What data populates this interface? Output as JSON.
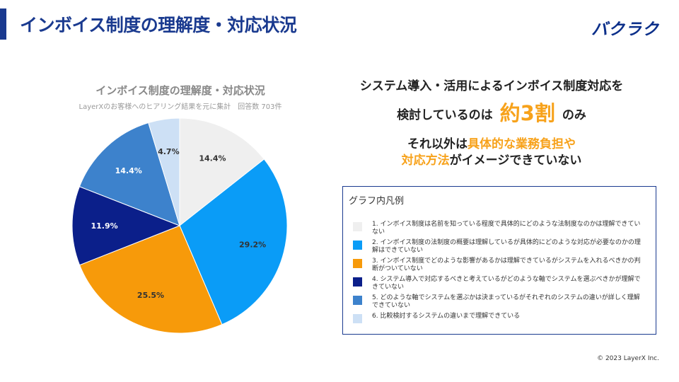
{
  "slide": {
    "title": "インボイス制度の理解度・対応状況",
    "logo": "バクラク",
    "copyright": "© 2023 LayerX Inc."
  },
  "headline": {
    "line1": "システム導入・活用によるインボイス制度対応を",
    "line2_before": "検討しているのは",
    "line2_emphasis": "約3割",
    "line2_after": "のみ",
    "line3_highlight": "具体的な業務負担や",
    "line3_prefix": "それ以外は",
    "line4_highlight": "対応方法",
    "line4_rest": "がイメージできていない"
  },
  "legend": {
    "title": "グラフ内凡例",
    "items": [
      "1. インボイス制度は名前を知っている程度で具体的にどのような法制度なのかは理解できていない",
      "2. インボイス制度の法制度の概要は理解しているが具体的にどのような対応が必要なのかの理解はできていない",
      "3. インボイス制度でどのような影響があるかは理解できているがシステムを入れるべきかの判断がついていない",
      "4. システム導入で対応するべきと考えているがどのような軸でシステムを選ぶべきかが理解できていない",
      "5. どのような軸でシステムを選ぶかは決まっているがそれぞれのシステムの違いが詳しく理解できていない",
      "6. 比較検討するシステムの違いまで理解できている"
    ]
  },
  "colors": {
    "title": "#1a3a8f",
    "accent": "#f7a21b",
    "slices": [
      "#efefef",
      "#0a9cf7",
      "#f79a0a",
      "#0b1f8a",
      "#3d82cc",
      "#cde0f5"
    ]
  },
  "chart_data": {
    "type": "pie",
    "title": "インボイス制度の理解度・対応状況",
    "subtitle": "LayerXのお客様へのヒアリング結果を元に集計　回答数 703件",
    "start": "12 o'clock, clockwise",
    "categories": [
      "1",
      "2",
      "3",
      "4",
      "5",
      "6"
    ],
    "values": [
      14.4,
      29.2,
      25.5,
      11.9,
      14.4,
      4.7
    ],
    "labels": [
      "14.4%",
      "29.2%",
      "25.5%",
      "11.9%",
      "14.4%",
      "4.7%"
    ]
  }
}
